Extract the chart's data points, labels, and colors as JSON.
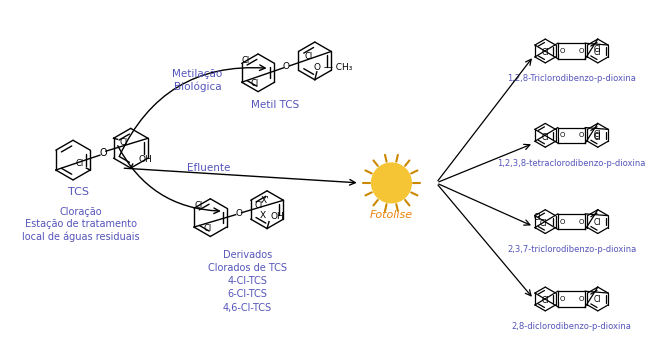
{
  "bg_color": "#ffffff",
  "blue_color": "#5555bb",
  "orange_color": "#E8820A",
  "black_color": "#000000",
  "labels": {
    "TCS": "TCS",
    "metilacao": "Metilação\nBiológica",
    "metil_tcs": "Metil TCS",
    "efluente": "Efluente",
    "cloracao": "Cloração\nEstação de tratamento\nlocal de águas residuais",
    "derivados": "Derivados\nClorados de TCS\n4-Cl-TCS\n6-Cl-TCS\n4,6-Cl-TCS",
    "fotolise": "Fotolise",
    "dioxina1": "1,2,8-Triclorodibenzo-p-dioxina",
    "dioxina2": "1,2,3,8-tetraclorodibenzo-p-dioxina",
    "dioxina3": "2,3,7-triclorodibenzo-p-dioxina",
    "dioxina4": "2,8-diclorodibenzo-p-dioxina"
  }
}
